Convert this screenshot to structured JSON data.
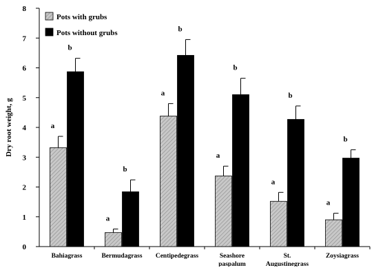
{
  "chart_data": {
    "type": "bar",
    "ylabel": "Dry root weight, g",
    "xlabel": "",
    "title": "",
    "ylim": [
      0,
      8
    ],
    "yticks": [
      0,
      1,
      2,
      3,
      4,
      5,
      6,
      7,
      8
    ],
    "categories": [
      [
        "Bahiagrass"
      ],
      [
        "Bermudagrass"
      ],
      [
        "Centipedegrass"
      ],
      [
        "Seashore",
        "paspalum"
      ],
      [
        "St.",
        "Augustinegrass"
      ],
      [
        "Zoysiagrass"
      ]
    ],
    "series": [
      {
        "name": "Pots with grubs",
        "fill": "hatched-light-gray",
        "values": [
          3.32,
          0.47,
          4.38,
          2.37,
          1.52,
          0.9
        ],
        "errors": [
          0.38,
          0.12,
          0.42,
          0.33,
          0.3,
          0.22
        ],
        "significance": [
          "a",
          "a",
          "a",
          "a",
          "a",
          "a"
        ]
      },
      {
        "name": "Pots without grubs",
        "fill": "#000000",
        "values": [
          5.87,
          1.84,
          6.42,
          5.1,
          4.27,
          2.97
        ],
        "errors": [
          0.45,
          0.4,
          0.53,
          0.55,
          0.45,
          0.28
        ],
        "significance": [
          "b",
          "b",
          "b",
          "b",
          "b",
          "b"
        ]
      }
    ],
    "legend_position": "top-left",
    "grid": false
  }
}
